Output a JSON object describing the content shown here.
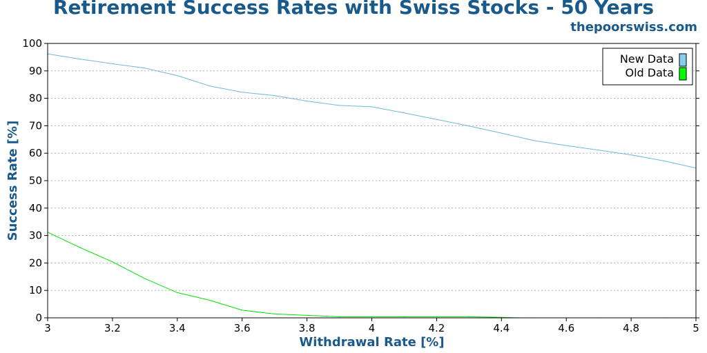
{
  "chart_data": {
    "type": "line",
    "title": "Retirement Success Rates with Swiss Stocks - 50 Years",
    "subtitle": "thepoorswiss.com",
    "xlabel": "Withdrawal Rate [%]",
    "ylabel": "Success Rate [%]",
    "xlim": [
      3,
      5
    ],
    "ylim": [
      0,
      100
    ],
    "x_ticks": [
      3,
      3.2,
      3.4,
      3.6,
      3.8,
      4,
      4.2,
      4.4,
      4.6,
      4.8,
      5
    ],
    "x_tick_labels": [
      "3",
      "3.2",
      "3.4",
      "3.6",
      "3.8",
      "4",
      "4.2",
      "4.4",
      "4.6",
      "4.8",
      "5"
    ],
    "y_ticks": [
      0,
      10,
      20,
      30,
      40,
      50,
      60,
      70,
      80,
      90,
      100
    ],
    "y_tick_labels": [
      "0",
      "10",
      "20",
      "30",
      "40",
      "50",
      "60",
      "70",
      "80",
      "90",
      "100"
    ],
    "grid": "horizontal dotted",
    "legend_position": "top-right",
    "series": [
      {
        "name": "New Data",
        "color": "#6cb8d8",
        "legend_color": "#87ceeb",
        "x": [
          3.0,
          3.1,
          3.2,
          3.3,
          3.4,
          3.5,
          3.6,
          3.7,
          3.8,
          3.9,
          4.0,
          4.1,
          4.2,
          4.3,
          4.4,
          4.5,
          4.6,
          4.7,
          4.8,
          4.9,
          5.0
        ],
        "y": [
          96.2,
          94.3,
          92.6,
          91.0,
          88.3,
          84.5,
          82.2,
          81.0,
          79.0,
          77.4,
          76.9,
          74.7,
          72.3,
          69.9,
          67.3,
          64.6,
          62.8,
          61.1,
          59.4,
          57.2,
          54.6
        ]
      },
      {
        "name": "Old Data",
        "color": "#00e000",
        "legend_color": "#00ff00",
        "x": [
          3.0,
          3.1,
          3.2,
          3.3,
          3.4,
          3.5,
          3.6,
          3.7,
          3.8,
          3.9,
          4.0,
          4.1,
          4.2,
          4.3,
          4.4,
          4.45,
          4.5,
          4.6,
          4.7,
          4.8,
          4.9,
          5.0
        ],
        "y": [
          31.2,
          25.6,
          20.4,
          14.3,
          9.2,
          6.4,
          2.8,
          1.4,
          0.9,
          0.4,
          0.4,
          0.4,
          0.4,
          0.4,
          0.2,
          0.0,
          0.0,
          0.0,
          0.0,
          0.0,
          0.0,
          0.0
        ]
      }
    ]
  }
}
